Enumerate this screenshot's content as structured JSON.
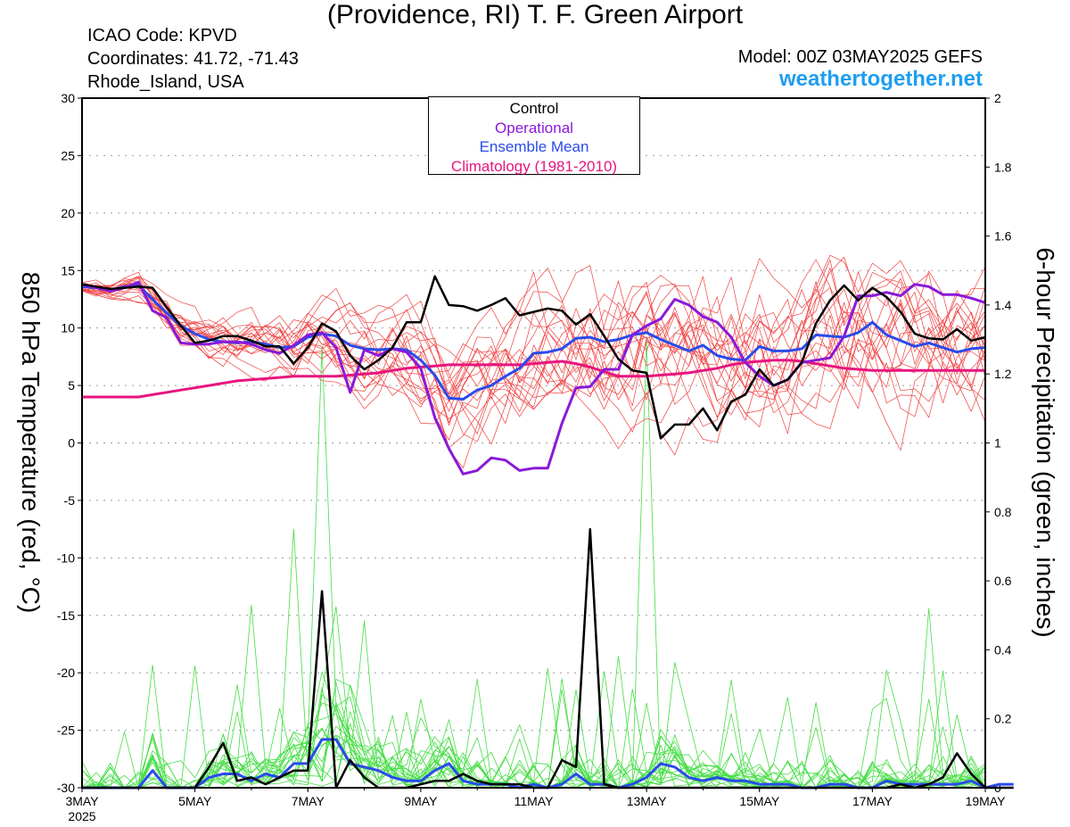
{
  "header": {
    "title": "(Providence, RI) T. F. Green Airport",
    "icao": "ICAO Code: KPVD",
    "coordinates": "Coordinates: 41.72, -71.43",
    "region": "Rhode_Island, USA",
    "model": "Model: 00Z 03MAY2025 GEFS",
    "site": "weathertogether.net"
  },
  "chart_data": {
    "type": "line",
    "ylabel_left": "850 hPa Temperature (red, °C)",
    "ylabel_right": "6-hour Precipitation (green, inches)",
    "x_axis": {
      "range": [
        0,
        64
      ],
      "unit": "6-hour steps from 00Z 03MAY2025",
      "tick_labels": [
        "3MAY",
        "5MAY",
        "7MAY",
        "9MAY",
        "11MAY",
        "13MAY",
        "15MAY",
        "17MAY",
        "19MAY"
      ],
      "tick_positions": [
        0,
        8,
        16,
        24,
        32,
        40,
        48,
        56,
        64
      ],
      "year_label": "2025"
    },
    "y_left": {
      "range": [
        -30,
        30
      ],
      "ticks": [
        "30",
        "25",
        "20",
        "15",
        "10",
        "5",
        "0",
        "-5",
        "-10",
        "-15",
        "-20",
        "-25",
        "-30"
      ]
    },
    "y_right": {
      "range": [
        0,
        2
      ],
      "ticks": [
        "2",
        "1.8",
        "1.6",
        "1.4",
        "1.2",
        "1",
        "0.8",
        "0.6",
        "0.4",
        "0.2",
        "0"
      ]
    },
    "grid": "horizontal dotted",
    "legend": {
      "placement": "top-center",
      "entries": [
        {
          "label": "Control",
          "color": "#000000"
        },
        {
          "label": "Operational",
          "color": "#8a19d8"
        },
        {
          "label": "Ensemble Mean",
          "color": "#2a4bea"
        },
        {
          "label": "Climatology (1981-2010)",
          "color": "#e8157f"
        }
      ]
    },
    "temperature": {
      "control": [
        13.8,
        13.6,
        13.4,
        13.5,
        13.6,
        13.5,
        11.8,
        10.2,
        8.7,
        8.9,
        9.3,
        9.3,
        8.9,
        8.4,
        8.4,
        6.9,
        8.3,
        10.4,
        9.7,
        7.6,
        6.4,
        7.2,
        8.3,
        10.5,
        10.5,
        14.5,
        12.0,
        11.9,
        11.5,
        12.0,
        12.6,
        11.1,
        11.4,
        11.7,
        11.5,
        10.3,
        11.2,
        9.3,
        7.3,
        6.3,
        6.1,
        0.4,
        1.6,
        1.6,
        3.0,
        1.1,
        3.6,
        4.2,
        6.4,
        5.0,
        5.5,
        7.0,
        10.4,
        12.4,
        13.7,
        12.4,
        13.5,
        12.7,
        11.4,
        9.5,
        9.1,
        9.0,
        9.9,
        8.9,
        9.2
      ],
      "operational": [
        13.8,
        13.5,
        13.2,
        13.5,
        14.0,
        11.5,
        10.9,
        8.7,
        8.6,
        8.6,
        8.8,
        8.8,
        8.6,
        8.1,
        7.8,
        8.5,
        9.4,
        9.6,
        8.3,
        4.4,
        8.1,
        7.6,
        8.2,
        7.9,
        6.5,
        2.2,
        -0.5,
        -2.7,
        -2.4,
        -1.3,
        -1.5,
        -2.4,
        -2.2,
        -2.2,
        1.7,
        4.8,
        4.9,
        6.4,
        6.4,
        9.4,
        10.2,
        10.8,
        12.5,
        12.0,
        11.0,
        10.5,
        9.2,
        7.0,
        5.8,
        5.0,
        5.5,
        7.0,
        7.2,
        7.4,
        9.3,
        12.8,
        12.8,
        13.1,
        12.8,
        13.8,
        13.6,
        12.9,
        12.9,
        12.6,
        12.2
      ],
      "ensemble_mean": [
        13.6,
        13.5,
        13.3,
        13.6,
        13.7,
        12.5,
        11.3,
        10.2,
        9.5,
        9.0,
        8.8,
        8.7,
        8.8,
        8.6,
        8.3,
        8.4,
        9.2,
        9.5,
        9.3,
        8.5,
        8.2,
        8.1,
        8.2,
        8.1,
        7.2,
        5.9,
        3.9,
        3.8,
        4.6,
        5.0,
        5.8,
        6.5,
        7.8,
        7.9,
        8.2,
        9.1,
        9.2,
        8.8,
        9.0,
        9.4,
        9.6,
        9.0,
        8.5,
        8.0,
        8.5,
        7.6,
        7.3,
        7.2,
        8.4,
        8.0,
        8.0,
        8.2,
        9.4,
        9.3,
        9.2,
        9.6,
        10.5,
        9.4,
        8.9,
        8.4,
        8.7,
        8.3,
        7.9,
        8.2,
        8.3
      ],
      "climatology": [
        4.0,
        4.0,
        4.0,
        4.0,
        4.0,
        4.2,
        4.4,
        4.6,
        4.8,
        5.0,
        5.2,
        5.4,
        5.5,
        5.6,
        5.7,
        5.8,
        5.8,
        5.8,
        5.8,
        5.9,
        6.0,
        6.1,
        6.3,
        6.5,
        6.6,
        6.7,
        6.8,
        6.8,
        6.8,
        6.8,
        6.8,
        6.8,
        6.9,
        7.0,
        7.1,
        6.9,
        6.6,
        6.2,
        5.8,
        5.8,
        5.8,
        5.9,
        6.0,
        6.1,
        6.3,
        6.5,
        6.8,
        7.0,
        7.1,
        7.2,
        7.2,
        7.1,
        6.9,
        6.7,
        6.5,
        6.4,
        6.3,
        6.3,
        6.3,
        6.3,
        6.3,
        6.3,
        6.3,
        6.3,
        6.3
      ]
    },
    "precipitation": {
      "control": [
        0,
        0,
        0,
        0,
        0,
        0,
        0,
        0,
        0,
        0.06,
        0.13,
        0.02,
        0.03,
        0.01,
        0.03,
        0.05,
        0.05,
        0.57,
        0,
        0.08,
        0.03,
        0,
        0,
        0,
        0.01,
        0.02,
        0.02,
        0.04,
        0.02,
        0.01,
        0.01,
        0.01,
        0,
        0,
        0.08,
        0.06,
        0.75,
        0.01,
        0,
        0,
        0,
        0,
        0,
        0,
        0,
        0,
        0,
        0,
        0,
        0,
        0,
        0,
        0,
        0,
        0,
        0,
        0,
        0,
        0.01,
        0,
        0.01,
        0.03,
        0.1,
        0.04,
        0,
        0,
        0
      ],
      "ensemble_mean": [
        0,
        0,
        0,
        0,
        0,
        0.05,
        0,
        0,
        0,
        0.03,
        0.04,
        0.04,
        0.02,
        0.04,
        0.03,
        0.07,
        0.07,
        0.14,
        0.14,
        0.07,
        0.06,
        0.05,
        0.03,
        0.02,
        0.02,
        0.05,
        0.07,
        0.02,
        0.01,
        0.01,
        0.01,
        0,
        0.01,
        0,
        0.01,
        0.04,
        0.01,
        0.01,
        0,
        0.01,
        0.03,
        0.07,
        0.06,
        0.03,
        0.02,
        0.03,
        0.02,
        0.02,
        0.01,
        0.01,
        0.01,
        0,
        0,
        0.01,
        0.01,
        0,
        0,
        0.02,
        0.01,
        0.01,
        0.01,
        0.01,
        0.01,
        0.02,
        0,
        0.01,
        0.01
      ]
    }
  }
}
